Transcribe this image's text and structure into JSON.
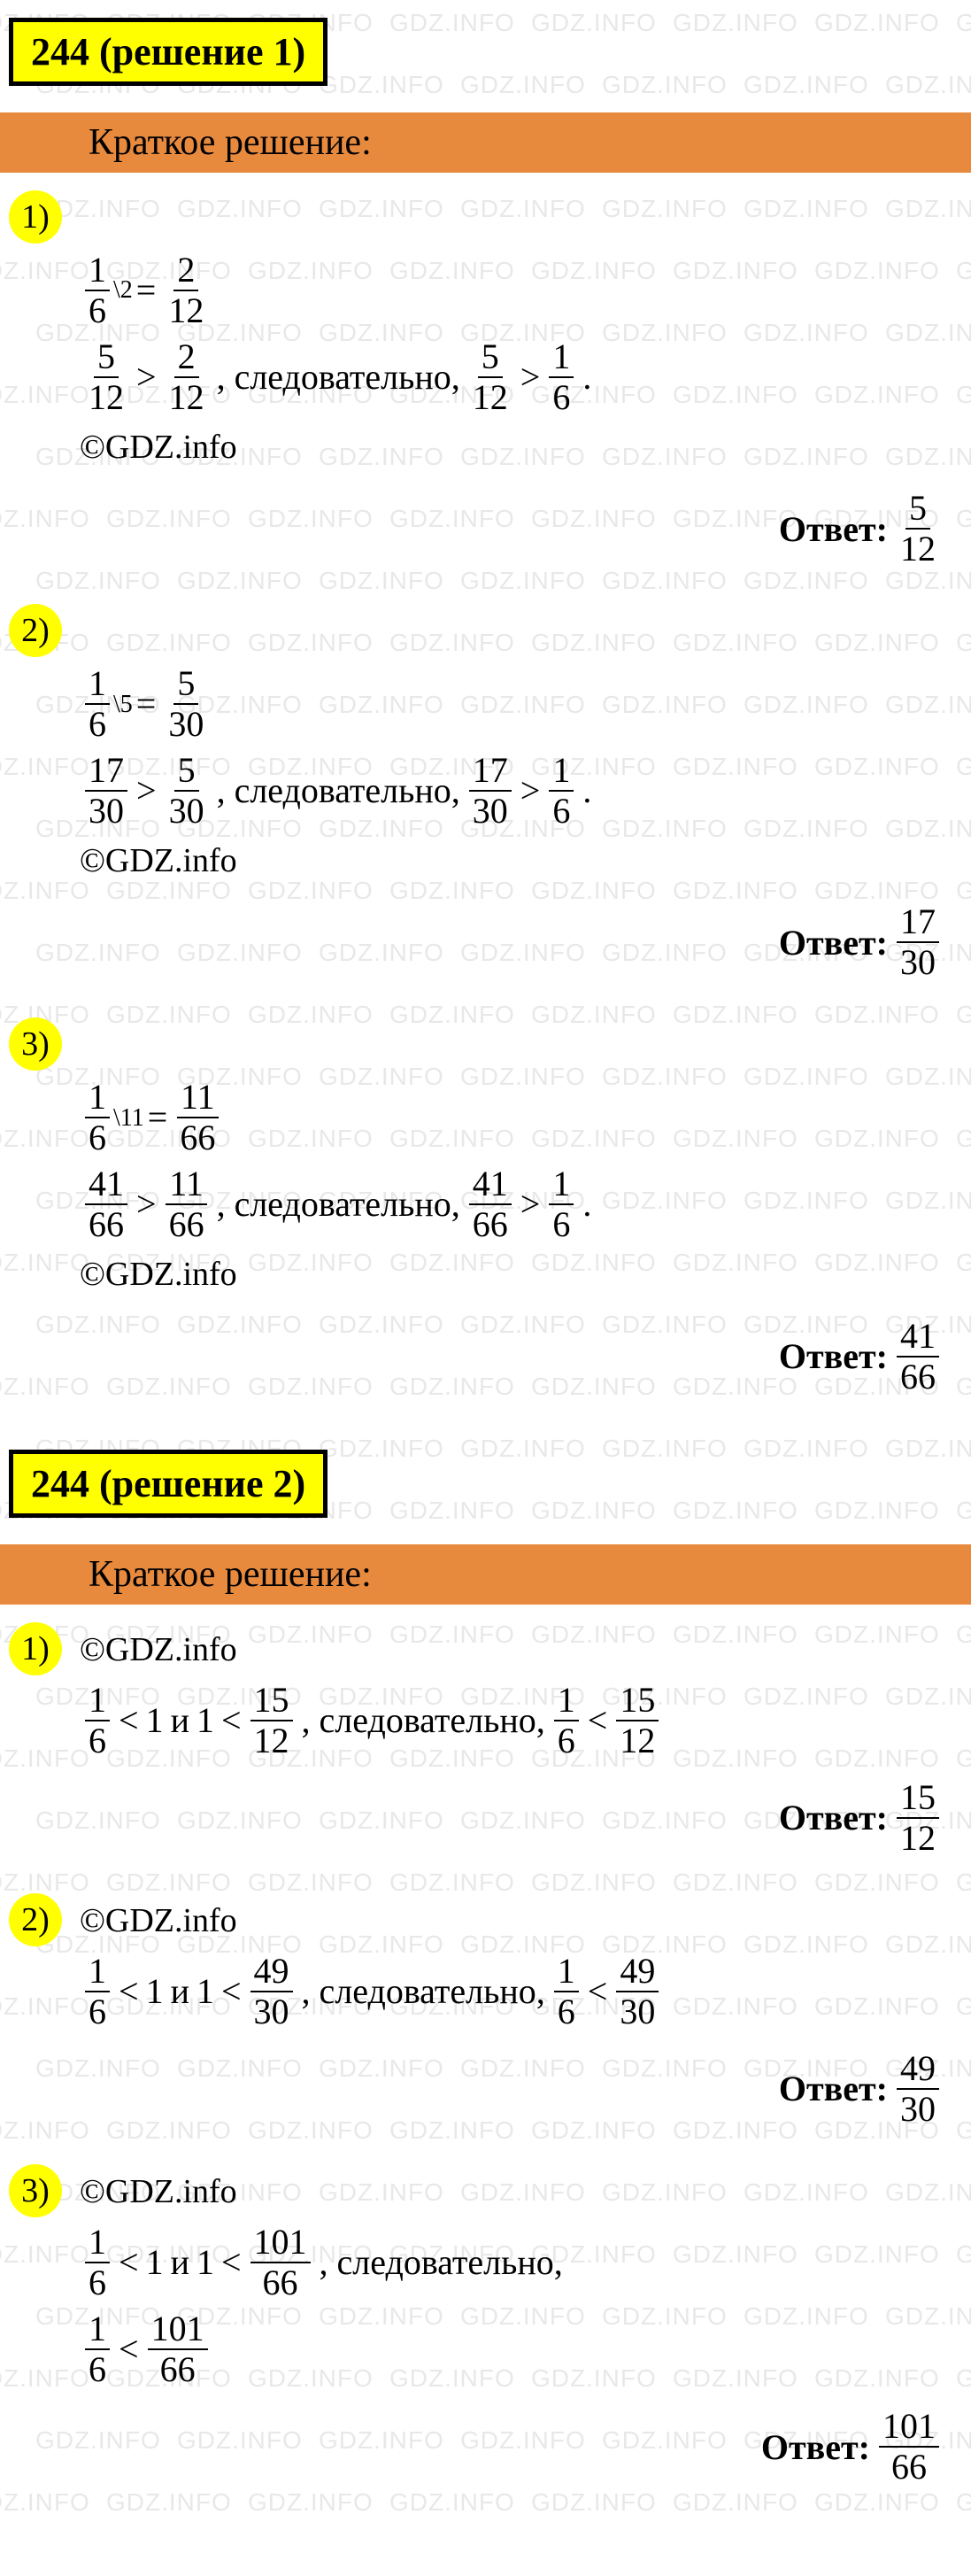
{
  "watermark_text": "GDZ.INFO",
  "watermark_color": "#e8e8e8",
  "bg_color": "#ffffff",
  "text_color": "#000000",
  "yellow": "#ffff00",
  "orange": "#e88a3e",
  "section_label": "Краткое решение:",
  "copyright": "©GDZ.info",
  "answer_label": "Ответ:",
  "and_word": "и",
  "consequently": ", следовательно,",
  "solutions": [
    {
      "title": "244 (решение 1)",
      "items": [
        {
          "num": "1)",
          "lines": [
            {
              "type": "eq",
              "lhs_n": "1",
              "lhs_d": "6",
              "mult": "\\2",
              "rhs_n": "2",
              "rhs_d": "12"
            },
            {
              "type": "cmp",
              "a_n": "5",
              "a_d": "12",
              "op": ">",
              "b_n": "2",
              "b_d": "12",
              "c_n": "5",
              "c_d": "12",
              "op2": ">",
              "d_n": "1",
              "d_d": "6"
            }
          ],
          "answer_n": "5",
          "answer_d": "12"
        },
        {
          "num": "2)",
          "lines": [
            {
              "type": "eq",
              "lhs_n": "1",
              "lhs_d": "6",
              "mult": "\\5",
              "rhs_n": "5",
              "rhs_d": "30"
            },
            {
              "type": "cmp",
              "a_n": "17",
              "a_d": "30",
              "op": ">",
              "b_n": "5",
              "b_d": "30",
              "c_n": "17",
              "c_d": "30",
              "op2": ">",
              "d_n": "1",
              "d_d": "6"
            }
          ],
          "answer_n": "17",
          "answer_d": "30"
        },
        {
          "num": "3)",
          "lines": [
            {
              "type": "eq",
              "lhs_n": "1",
              "lhs_d": "6",
              "mult": "\\11",
              "rhs_n": "11",
              "rhs_d": "66"
            },
            {
              "type": "cmp",
              "a_n": "41",
              "a_d": "66",
              "op": ">",
              "b_n": "11",
              "b_d": "66",
              "c_n": "41",
              "c_d": "66",
              "op2": ">",
              "d_n": "1",
              "d_d": "6"
            }
          ],
          "answer_n": "41",
          "answer_d": "66"
        }
      ]
    },
    {
      "title": "244 (решение 2)",
      "items": [
        {
          "num": "1)",
          "lines": [
            {
              "type": "ineq",
              "a_n": "1",
              "a_d": "6",
              "mid": "1",
              "b_n": "15",
              "b_d": "12",
              "c_n": "1",
              "c_d": "6",
              "d_n": "15",
              "d_d": "12"
            }
          ],
          "answer_n": "15",
          "answer_d": "12"
        },
        {
          "num": "2)",
          "lines": [
            {
              "type": "ineq",
              "a_n": "1",
              "a_d": "6",
              "mid": "1",
              "b_n": "49",
              "b_d": "30",
              "c_n": "1",
              "c_d": "6",
              "d_n": "49",
              "d_d": "30"
            }
          ],
          "answer_n": "49",
          "answer_d": "30"
        },
        {
          "num": "3)",
          "lines": [
            {
              "type": "ineq2",
              "a_n": "1",
              "a_d": "6",
              "mid": "1",
              "b_n": "101",
              "b_d": "66",
              "c_n": "1",
              "c_d": "6",
              "d_n": "101",
              "d_d": "66"
            }
          ],
          "answer_n": "101",
          "answer_d": "66"
        }
      ]
    }
  ]
}
